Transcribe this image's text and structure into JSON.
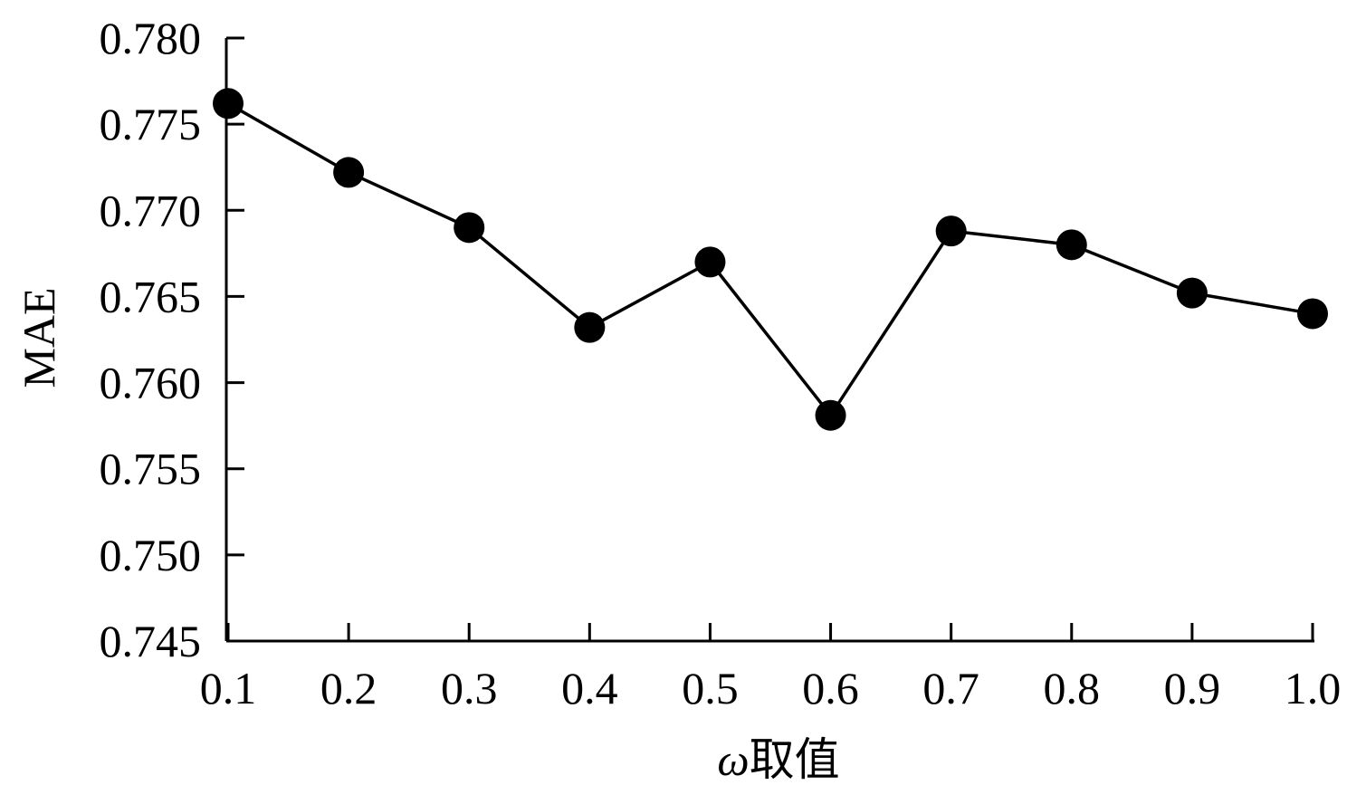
{
  "chart_data": {
    "type": "line",
    "xlabel": "ω取值",
    "xlabel_symbol": "ω",
    "xlabel_text": "取值",
    "ylabel": "MAE",
    "x": [
      0.1,
      0.2,
      0.3,
      0.4,
      0.5,
      0.6,
      0.7,
      0.8,
      0.9,
      1.0
    ],
    "x_tick_labels": [
      "0.1",
      "0.2",
      "0.3",
      "0.4",
      "0.5",
      "0.6",
      "0.7",
      "0.8",
      "0.9",
      "1.0"
    ],
    "ylim": [
      0.745,
      0.78
    ],
    "y_ticks": [
      0.745,
      0.75,
      0.755,
      0.76,
      0.765,
      0.77,
      0.775,
      0.78
    ],
    "y_tick_labels": [
      "0.745",
      "0.750",
      "0.755",
      "0.760",
      "0.765",
      "0.770",
      "0.775",
      "0.780"
    ],
    "series": [
      {
        "values": [
          0.7762,
          0.7722,
          0.769,
          0.7632,
          0.767,
          0.7581,
          0.7688,
          0.768,
          0.7652,
          0.764
        ]
      }
    ],
    "marker": "filled-circle",
    "grid": false,
    "legend": "none"
  }
}
